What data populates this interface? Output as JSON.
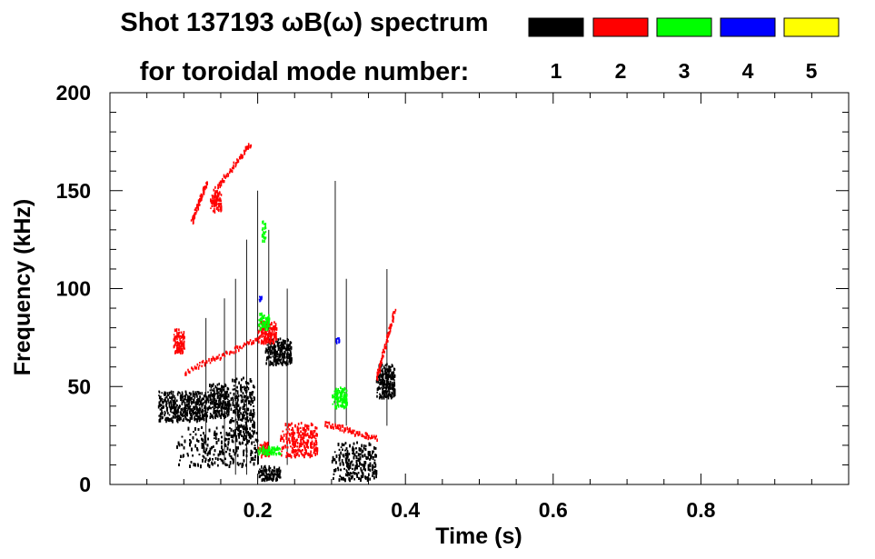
{
  "chart_data": {
    "type": "scatter",
    "title_line1": "Shot 137193 ωB(ω) spectrum",
    "title_line2": "for toroidal mode number:",
    "xlabel": "Time (s)",
    "ylabel": "Frequency (kHz)",
    "xlim": [
      0.0,
      1.0
    ],
    "ylim": [
      0,
      200
    ],
    "x_ticks": [
      0.2,
      0.4,
      0.6,
      0.8
    ],
    "x_tick_labels": [
      "0.2",
      "0.4",
      "0.6",
      "0.8"
    ],
    "y_ticks": [
      0,
      50,
      100,
      150,
      200
    ],
    "y_tick_labels": [
      "0",
      "50",
      "100",
      "150",
      "200"
    ],
    "legend": [
      {
        "label": "1",
        "color": "#000000"
      },
      {
        "label": "2",
        "color": "#ff0000"
      },
      {
        "label": "3",
        "color": "#00ff00"
      },
      {
        "label": "4",
        "color": "#0000ff"
      },
      {
        "label": "5",
        "color": "#ffff00"
      }
    ],
    "series": [
      {
        "name": "n=1",
        "color": "#000000",
        "clusters": [
          {
            "t": [
              0.065,
              0.13
            ],
            "f": [
              33,
              48
            ]
          },
          {
            "t": [
              0.13,
              0.16
            ],
            "f": [
              35,
              52
            ]
          },
          {
            "t": [
              0.16,
              0.195
            ],
            "f": [
              25,
              55
            ]
          },
          {
            "t": [
              0.2,
              0.23
            ],
            "f": [
              3,
              10
            ]
          },
          {
            "t": [
              0.21,
              0.245
            ],
            "f": [
              62,
              75
            ]
          },
          {
            "t": [
              0.3,
              0.36
            ],
            "f": [
              3,
              22
            ]
          },
          {
            "t": [
              0.36,
              0.385
            ],
            "f": [
              45,
              62
            ]
          },
          {
            "t": [
              0.09,
              0.2
            ],
            "f": [
              10,
              30
            ]
          }
        ],
        "streaks": [
          {
            "t": 0.185,
            "f": [
              5,
              125
            ]
          },
          {
            "t": 0.2,
            "f": [
              10,
              150
            ]
          },
          {
            "t": 0.17,
            "f": [
              5,
              105
            ]
          },
          {
            "t": 0.215,
            "f": [
              15,
              130
            ]
          },
          {
            "t": 0.155,
            "f": [
              10,
              95
            ]
          },
          {
            "t": 0.305,
            "f": [
              30,
              155
            ]
          },
          {
            "t": 0.32,
            "f": [
              30,
              105
            ]
          },
          {
            "t": 0.13,
            "f": [
              20,
              85
            ]
          },
          {
            "t": 0.24,
            "f": [
              10,
              100
            ]
          },
          {
            "t": 0.375,
            "f": [
              30,
              110
            ]
          }
        ]
      },
      {
        "name": "n=2",
        "color": "#ff0000",
        "curves": [
          {
            "t": [
              0.1,
              0.2
            ],
            "f": [
              58,
              75
            ]
          },
          {
            "t": [
              0.11,
              0.13
            ],
            "f": [
              135,
              155
            ]
          },
          {
            "t": [
              0.14,
              0.19
            ],
            "f": [
              150,
              175
            ]
          },
          {
            "t": [
              0.29,
              0.36
            ],
            "f": [
              32,
              24
            ]
          },
          {
            "t": [
              0.36,
              0.385
            ],
            "f": [
              55,
              90
            ]
          }
        ],
        "clusters": [
          {
            "t": [
              0.135,
              0.15
            ],
            "f": [
              140,
              150
            ]
          },
          {
            "t": [
              0.2,
              0.225
            ],
            "f": [
              73,
              84
            ]
          },
          {
            "t": [
              0.23,
              0.28
            ],
            "f": [
              15,
              32
            ]
          },
          {
            "t": [
              0.2,
              0.215
            ],
            "f": [
              15,
              22
            ]
          },
          {
            "t": [
              0.085,
              0.1
            ],
            "f": [
              68,
              80
            ]
          }
        ]
      },
      {
        "name": "n=3",
        "color": "#00ff00",
        "clusters": [
          {
            "t": [
              0.2,
              0.215
            ],
            "f": [
              80,
              88
            ]
          },
          {
            "t": [
              0.2,
              0.23
            ],
            "f": [
              16,
              20
            ]
          },
          {
            "t": [
              0.3,
              0.32
            ],
            "f": [
              40,
              50
            ]
          },
          {
            "t": [
              0.205,
              0.21
            ],
            "f": [
              125,
              135
            ]
          }
        ]
      },
      {
        "name": "n=4",
        "color": "#0000ff",
        "clusters": [
          {
            "t": [
              0.2,
              0.205
            ],
            "f": [
              94,
              97
            ]
          },
          {
            "t": [
              0.305,
              0.31
            ],
            "f": [
              73,
              76
            ]
          }
        ]
      },
      {
        "name": "n=5",
        "color": "#ffff00",
        "clusters": []
      }
    ]
  }
}
